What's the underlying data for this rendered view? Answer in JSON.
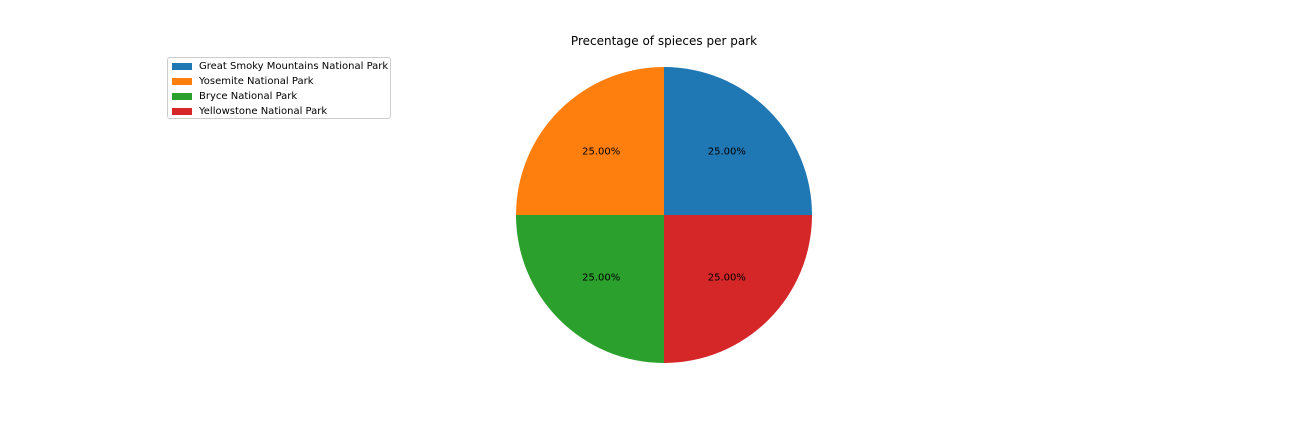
{
  "chart_data": {
    "type": "pie",
    "title": "Precentage of spieces per park",
    "categories": [
      "Great Smoky Mountains National Park",
      "Yosemite National Park",
      "Bryce National Park",
      "Yellowstone National Park"
    ],
    "values": [
      25.0,
      25.0,
      25.0,
      25.0
    ],
    "value_labels": [
      "25.00%",
      "25.00%",
      "25.00%",
      "25.00%"
    ],
    "colors": [
      "#1f77b4",
      "#ff7f0e",
      "#2ca02c",
      "#d62728"
    ],
    "start_angle_deg": 0,
    "direction": "counterclockwise",
    "legend_placement": "upper-left"
  }
}
